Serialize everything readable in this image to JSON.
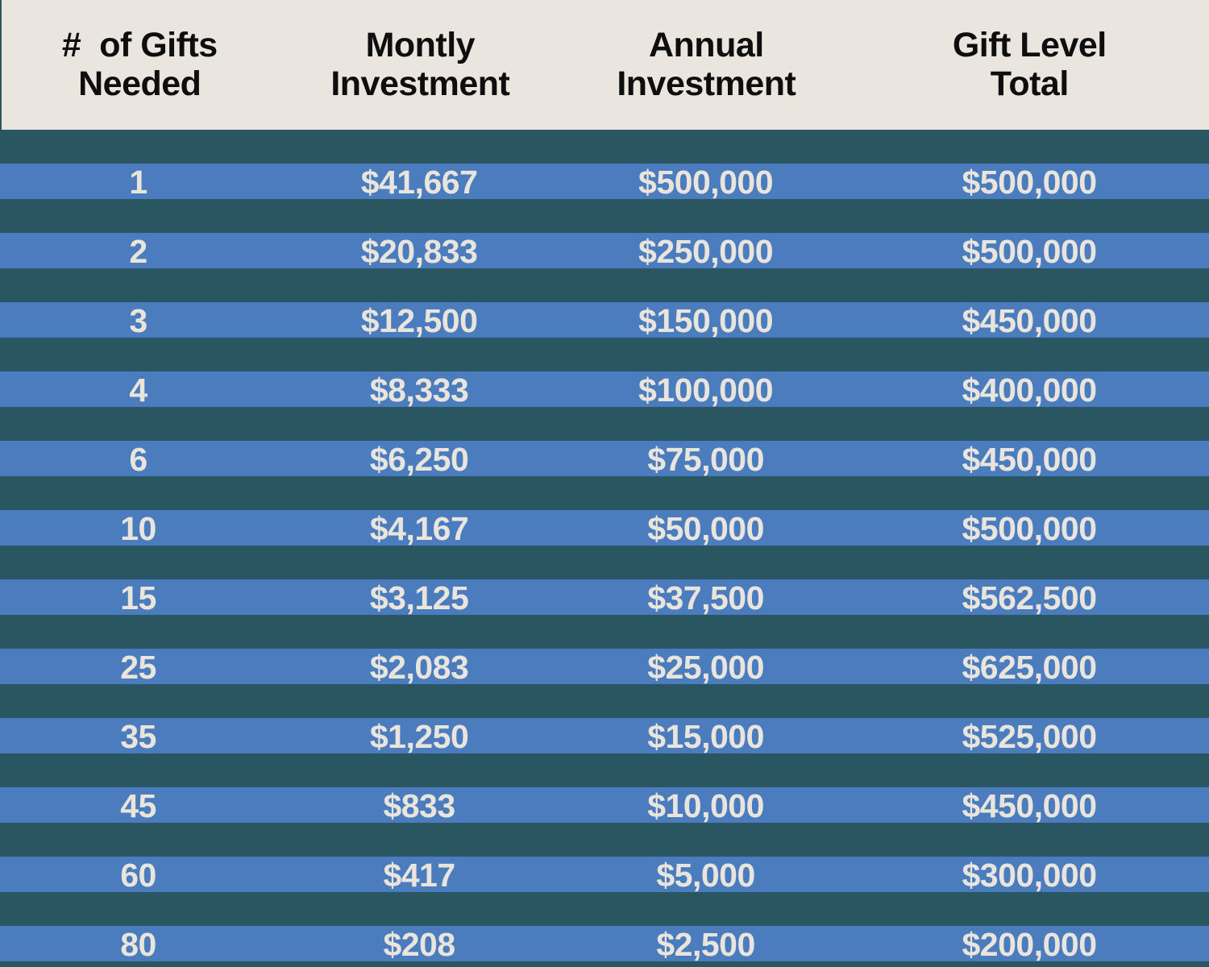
{
  "colors": {
    "background_teal": "#2a5661",
    "row_blue": "#4b7cbe",
    "header_cream": "#eae6df",
    "header_text": "#0e0e0e",
    "row_text": "#e9e5dc"
  },
  "chart_data": {
    "type": "table",
    "legend_position": "none",
    "grid": false,
    "columns": [
      "#  of Gifts\nNeeded",
      "Montly\nInvestment",
      "Annual\nInvestment",
      "Gift Level\nTotal"
    ],
    "rows": [
      [
        "1",
        "$41,667",
        "$500,000",
        "$500,000"
      ],
      [
        "2",
        "$20,833",
        "$250,000",
        "$500,000"
      ],
      [
        "3",
        "$12,500",
        "$150,000",
        "$450,000"
      ],
      [
        "4",
        "$8,333",
        "$100,000",
        "$400,000"
      ],
      [
        "6",
        "$6,250",
        "$75,000",
        "$450,000"
      ],
      [
        "10",
        "$4,167",
        "$50,000",
        "$500,000"
      ],
      [
        "15",
        "$3,125",
        "$37,500",
        "$562,500"
      ],
      [
        "25",
        "$2,083",
        "$25,000",
        "$625,000"
      ],
      [
        "35",
        "$1,250",
        "$15,000",
        "$525,000"
      ],
      [
        "45",
        "$833",
        "$10,000",
        "$450,000"
      ],
      [
        "60",
        "$417",
        "$5,000",
        "$300,000"
      ],
      [
        "80",
        "$208",
        "$2,500",
        "$200,000"
      ]
    ]
  }
}
